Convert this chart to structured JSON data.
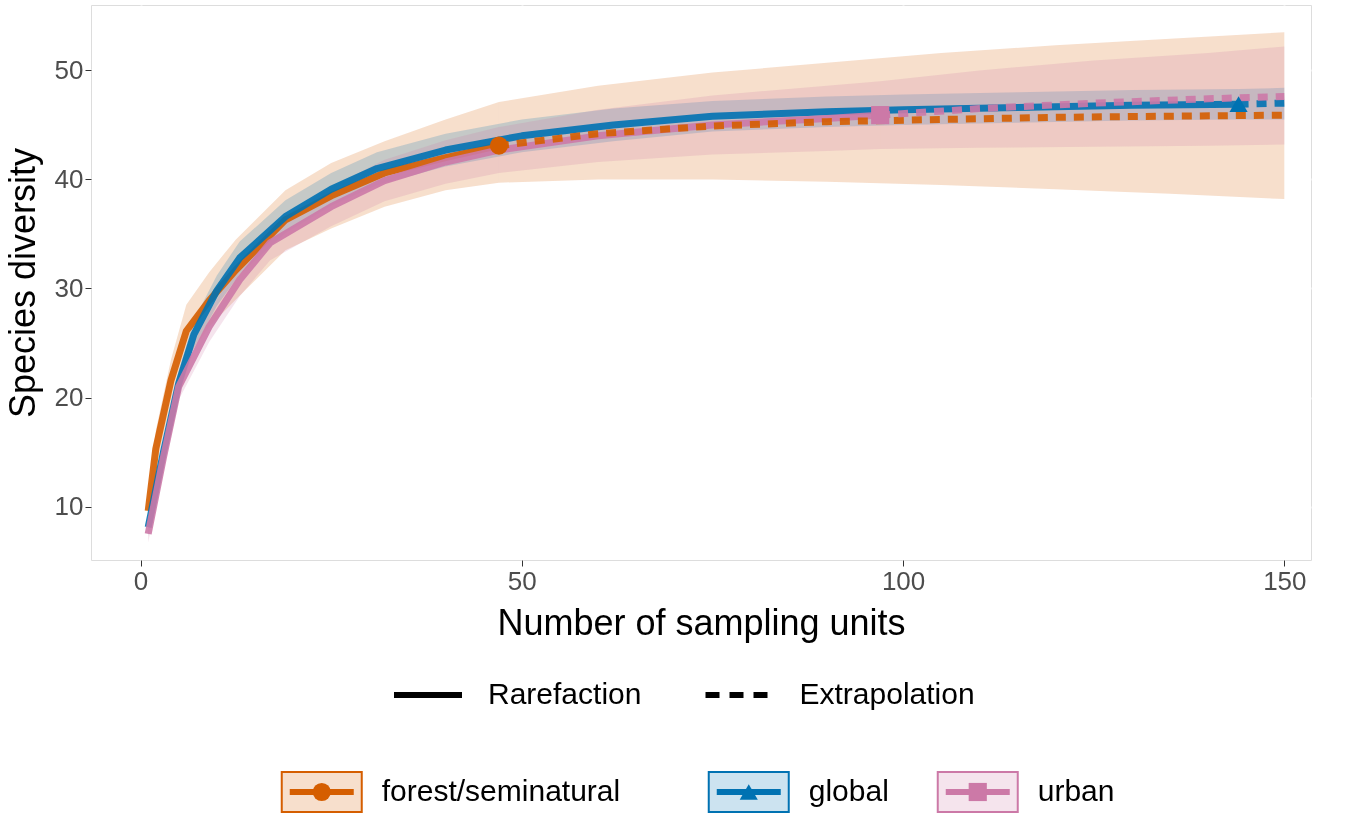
{
  "chart_data": {
    "type": "line",
    "xlabel": "Number of sampling units",
    "ylabel": "Species diversity",
    "annotations": [
      "Rarefaction",
      "Extrapolation"
    ],
    "xlim": [
      -6.5,
      153.5
    ],
    "ylim": [
      5.1,
      56
    ],
    "xticks": [
      0,
      50,
      100,
      150
    ],
    "yticks": [
      10,
      20,
      30,
      40,
      50
    ],
    "grid": true,
    "legend": "bottom",
    "series": [
      {
        "type": "line",
        "line_style": "solid",
        "color": "#D55E00",
        "x": [
          1,
          2,
          4,
          6,
          9,
          12.5,
          19,
          25,
          32,
          40,
          47
        ],
        "values": [
          9.6,
          15.3,
          21.6,
          26.1,
          28.9,
          31.7,
          36.3,
          38.5,
          40.6,
          42.0,
          43.1
        ],
        "lower": [
          8.5,
          13.5,
          19.5,
          23.5,
          26.5,
          29,
          33.5,
          35.5,
          37.5,
          39,
          39.7
        ],
        "upper": [
          10.7,
          17,
          23.5,
          28.5,
          31.5,
          34.5,
          39,
          41.5,
          43.5,
          45.5,
          47.1
        ]
      },
      {
        "type": "line",
        "line_style": "dashed",
        "color": "#D55E00",
        "x": [
          47,
          60,
          75,
          90,
          105,
          120,
          135,
          150
        ],
        "values": [
          43.1,
          44.2,
          44.9,
          45.3,
          45.5,
          45.7,
          45.8,
          45.9
        ],
        "lower": [
          39.7,
          40,
          40,
          39.8,
          39.5,
          39.1,
          38.7,
          38.2
        ],
        "upper": [
          47.1,
          48.6,
          49.8,
          50.7,
          51.6,
          52.3,
          52.9,
          53.5
        ]
      },
      {
        "type": "line",
        "line_style": "solid",
        "color": "#0072B2",
        "x": [
          1,
          3,
          5,
          7,
          10,
          13,
          19,
          25,
          31,
          40,
          50,
          62,
          75,
          90,
          100,
          115,
          130,
          144
        ],
        "values": [
          8.1,
          15,
          21.3,
          25.8,
          29.8,
          32.8,
          36.6,
          39.1,
          41,
          42.7,
          44,
          45,
          45.8,
          46.2,
          46.4,
          46.6,
          46.8,
          46.9
        ],
        "lower": [
          7.3,
          14,
          20.1,
          24.5,
          28.4,
          31.3,
          35.1,
          37.6,
          39.5,
          41.2,
          42.5,
          43.5,
          44.4,
          44.8,
          45,
          45.2,
          45.4,
          45.5
        ],
        "upper": [
          8.9,
          16,
          22.5,
          27.1,
          31.2,
          34.3,
          38.1,
          40.6,
          42.5,
          44.2,
          45.5,
          46.5,
          47.2,
          47.6,
          47.8,
          48,
          48.2,
          48.3
        ]
      },
      {
        "type": "line",
        "line_style": "dashed",
        "color": "#0072B2",
        "x": [
          144,
          150
        ],
        "values": [
          46.9,
          47.0
        ],
        "lower": [
          45.5,
          45.5
        ],
        "upper": [
          48.3,
          48.4
        ]
      },
      {
        "type": "line",
        "line_style": "solid",
        "color": "#CC79A7",
        "x": [
          1,
          3,
          5,
          9,
          13,
          17,
          25,
          32,
          40,
          47,
          60,
          75,
          90,
          97
        ],
        "values": [
          7.5,
          14.5,
          21,
          26.5,
          30.8,
          34.2,
          37.5,
          39.9,
          41.6,
          42.7,
          44,
          45,
          45.6,
          45.9
        ],
        "lower": [
          6.7,
          13.5,
          19.8,
          25.1,
          29.3,
          32.6,
          35.7,
          38,
          39.6,
          40.6,
          41.6,
          42.3,
          42.6,
          42.8
        ],
        "upper": [
          8.3,
          15.5,
          22.2,
          27.9,
          32.3,
          35.8,
          39.3,
          41.8,
          43.6,
          44.8,
          46.4,
          47.7,
          48.6,
          49
        ]
      },
      {
        "type": "line",
        "line_style": "dashed",
        "color": "#CC79A7",
        "x": [
          97,
          110,
          125,
          140,
          150
        ],
        "values": [
          45.9,
          46.5,
          47.0,
          47.4,
          47.6
        ],
        "lower": [
          42.8,
          42.9,
          43.0,
          43.1,
          43.2
        ],
        "upper": [
          49,
          50.0,
          50.9,
          51.6,
          52.2
        ]
      },
      {
        "type": "scatter",
        "name": "forest/seminatural",
        "marker": "circle",
        "color": "#D55E00",
        "x": [
          47
        ],
        "values": [
          43.1
        ]
      },
      {
        "type": "scatter",
        "name": "global",
        "marker": "triangle",
        "color": "#0072B2",
        "x": [
          144
        ],
        "values": [
          46.9
        ]
      },
      {
        "type": "scatter",
        "name": "urban",
        "marker": "square",
        "color": "#CC79A7",
        "x": [
          97
        ],
        "values": [
          45.9
        ]
      }
    ]
  }
}
